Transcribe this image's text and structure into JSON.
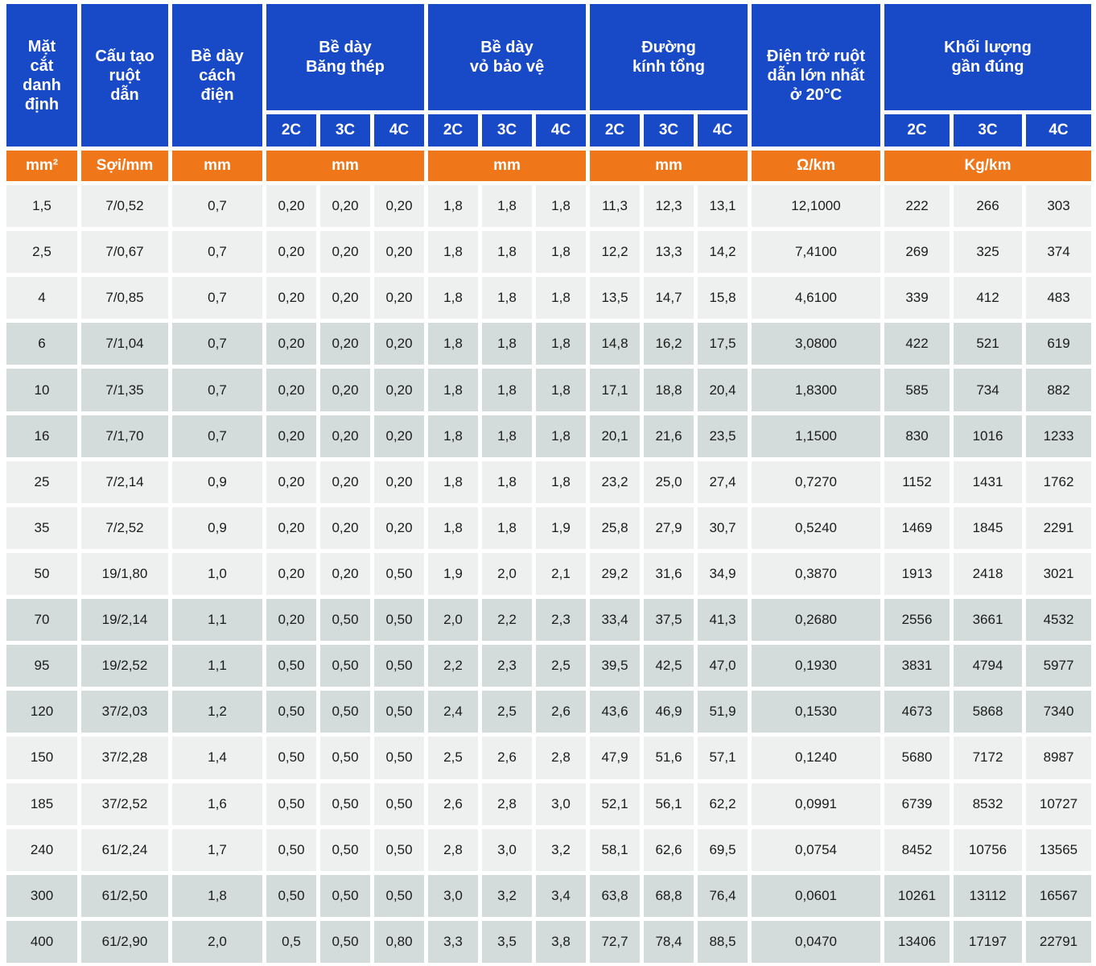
{
  "table": {
    "groups": {
      "mat_cat": "Mặt\ncắt\ndanh\nđịnh",
      "cau_tao": "Cấu tạo\nruột\ndẫn",
      "cach_dien": "Bề dày\ncách\nđiện",
      "bang_thep": "Bề dày\nBăng thép",
      "vo_bao_ve": "Bề dày\nvỏ bảo vệ",
      "duong_kinh": "Đường\nkính tổng",
      "dien_tro": "Điện trở ruột\ndẫn lớn nhất\nở 20°C",
      "khoi_luong": "Khối lượng\ngần đúng"
    },
    "subheaders": [
      "2C",
      "3C",
      "4C"
    ],
    "units": {
      "mat_cat": "mm²",
      "cau_tao": "Sợi/mm",
      "cach_dien": "mm",
      "bang_thep": "mm",
      "vo_bao_ve": "mm",
      "duong_kinh": "mm",
      "dien_tro": "Ω/km",
      "khoi_luong": "Kg/km"
    },
    "rows": [
      [
        "1,5",
        "7/0,52",
        "0,7",
        "0,20",
        "0,20",
        "0,20",
        "1,8",
        "1,8",
        "1,8",
        "11,3",
        "12,3",
        "13,1",
        "12,1000",
        "222",
        "266",
        "303"
      ],
      [
        "2,5",
        "7/0,67",
        "0,7",
        "0,20",
        "0,20",
        "0,20",
        "1,8",
        "1,8",
        "1,8",
        "12,2",
        "13,3",
        "14,2",
        "7,4100",
        "269",
        "325",
        "374"
      ],
      [
        "4",
        "7/0,85",
        "0,7",
        "0,20",
        "0,20",
        "0,20",
        "1,8",
        "1,8",
        "1,8",
        "13,5",
        "14,7",
        "15,8",
        "4,6100",
        "339",
        "412",
        "483"
      ],
      [
        "6",
        "7/1,04",
        "0,7",
        "0,20",
        "0,20",
        "0,20",
        "1,8",
        "1,8",
        "1,8",
        "14,8",
        "16,2",
        "17,5",
        "3,0800",
        "422",
        "521",
        "619"
      ],
      [
        "10",
        "7/1,35",
        "0,7",
        "0,20",
        "0,20",
        "0,20",
        "1,8",
        "1,8",
        "1,8",
        "17,1",
        "18,8",
        "20,4",
        "1,8300",
        "585",
        "734",
        "882"
      ],
      [
        "16",
        "7/1,70",
        "0,7",
        "0,20",
        "0,20",
        "0,20",
        "1,8",
        "1,8",
        "1,8",
        "20,1",
        "21,6",
        "23,5",
        "1,1500",
        "830",
        "1016",
        "1233"
      ],
      [
        "25",
        "7/2,14",
        "0,9",
        "0,20",
        "0,20",
        "0,20",
        "1,8",
        "1,8",
        "1,8",
        "23,2",
        "25,0",
        "27,4",
        "0,7270",
        "1152",
        "1431",
        "1762"
      ],
      [
        "35",
        "7/2,52",
        "0,9",
        "0,20",
        "0,20",
        "0,20",
        "1,8",
        "1,8",
        "1,9",
        "25,8",
        "27,9",
        "30,7",
        "0,5240",
        "1469",
        "1845",
        "2291"
      ],
      [
        "50",
        "19/1,80",
        "1,0",
        "0,20",
        "0,20",
        "0,50",
        "1,9",
        "2,0",
        "2,1",
        "29,2",
        "31,6",
        "34,9",
        "0,3870",
        "1913",
        "2418",
        "3021"
      ],
      [
        "70",
        "19/2,14",
        "1,1",
        "0,20",
        "0,50",
        "0,50",
        "2,0",
        "2,2",
        "2,3",
        "33,4",
        "37,5",
        "41,3",
        "0,2680",
        "2556",
        "3661",
        "4532"
      ],
      [
        "95",
        "19/2,52",
        "1,1",
        "0,50",
        "0,50",
        "0,50",
        "2,2",
        "2,3",
        "2,5",
        "39,5",
        "42,5",
        "47,0",
        "0,1930",
        "3831",
        "4794",
        "5977"
      ],
      [
        "120",
        "37/2,03",
        "1,2",
        "0,50",
        "0,50",
        "0,50",
        "2,4",
        "2,5",
        "2,6",
        "43,6",
        "46,9",
        "51,9",
        "0,1530",
        "4673",
        "5868",
        "7340"
      ],
      [
        "150",
        "37/2,28",
        "1,4",
        "0,50",
        "0,50",
        "0,50",
        "2,5",
        "2,6",
        "2,8",
        "47,9",
        "51,6",
        "57,1",
        "0,1240",
        "5680",
        "7172",
        "8987"
      ],
      [
        "185",
        "37/2,52",
        "1,6",
        "0,50",
        "0,50",
        "0,50",
        "2,6",
        "2,8",
        "3,0",
        "52,1",
        "56,1",
        "62,2",
        "0,0991",
        "6739",
        "8532",
        "10727"
      ],
      [
        "240",
        "61/2,24",
        "1,7",
        "0,50",
        "0,50",
        "0,50",
        "2,8",
        "3,0",
        "3,2",
        "58,1",
        "62,6",
        "69,5",
        "0,0754",
        "8452",
        "10756",
        "13565"
      ],
      [
        "300",
        "61/2,50",
        "1,8",
        "0,50",
        "0,50",
        "0,50",
        "3,0",
        "3,2",
        "3,4",
        "63,8",
        "68,8",
        "76,4",
        "0,0601",
        "10261",
        "13112",
        "16567"
      ],
      [
        "400",
        "61/2,90",
        "2,0",
        "0,5",
        "0,50",
        "0,80",
        "3,3",
        "3,5",
        "3,8",
        "72,7",
        "78,4",
        "88,5",
        "0,0470",
        "13406",
        "17197",
        "22791"
      ]
    ],
    "colors": {
      "header_blue": "#1849C6",
      "unit_orange": "#F0761A",
      "row_light": "#EDF0EF",
      "row_dark": "#D3DCDA"
    }
  }
}
